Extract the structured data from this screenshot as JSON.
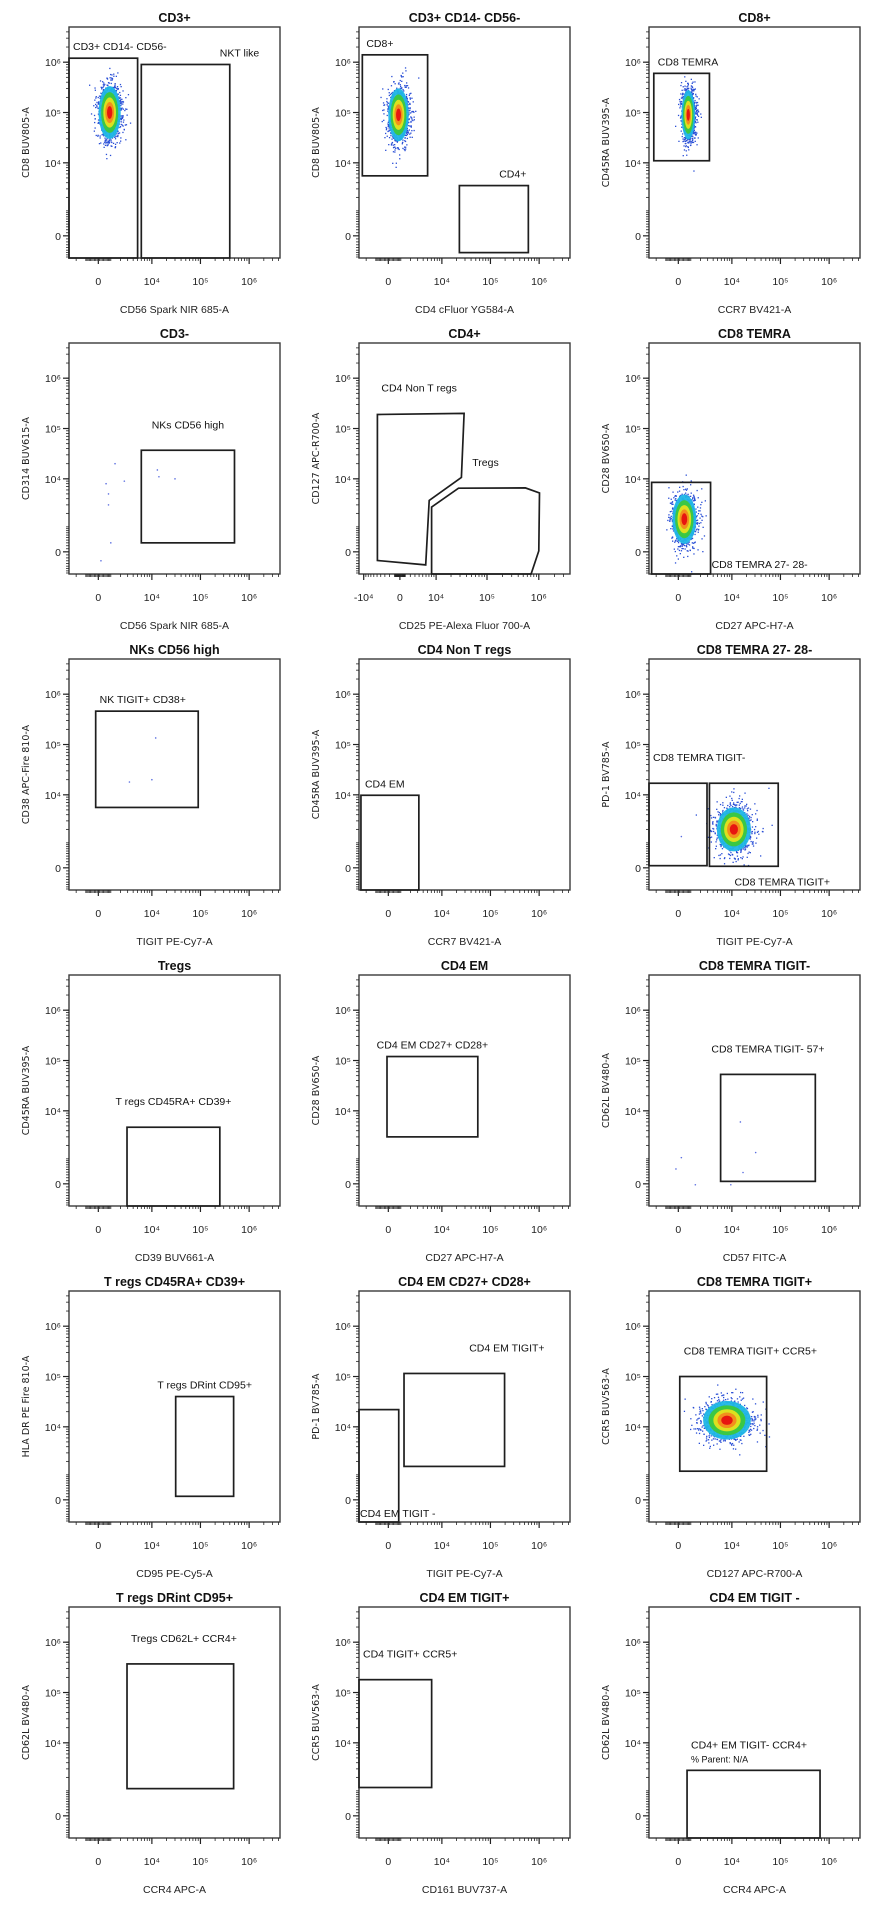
{
  "colors": {
    "gate": "#1e1e1e",
    "frame": "#3a3a3a",
    "event": "#5a6ee0",
    "density": [
      "#2a4fd6",
      "#1fb6e6",
      "#3cc83c",
      "#e6e21e",
      "#f28a1e",
      "#e61010"
    ]
  },
  "axis_defaults": {
    "x": {
      "scale": "biexponential",
      "cofactor": 1600,
      "range": [
        -3000,
        4300000
      ],
      "ticks": [
        0,
        10000,
        100000,
        1000000
      ],
      "tick_labels": [
        "0",
        "10⁴",
        "10⁵",
        "10⁶"
      ]
    },
    "y": {
      "scale": "biexponential",
      "cofactor": 710,
      "range": [
        -850,
        5000000
      ],
      "ticks": [
        0,
        10000,
        100000,
        1000000
      ],
      "tick_labels": [
        "0",
        "10⁴",
        "10⁵",
        "10⁶"
      ]
    }
  },
  "chart_data": [
    {
      "type": "scatter",
      "title": "CD3+",
      "xlabel": "CD56 Spark NIR 685-A",
      "ylabel": "CD8 BUV805-A",
      "gates": [
        {
          "label": "CD3+ CD14- CD56-",
          "shape": "rect",
          "x": [
            -3000,
            5000
          ],
          "y": [
            -850,
            1200000
          ],
          "placement": "above-left"
        },
        {
          "label": "NKT like",
          "shape": "rect",
          "x": [
            6000,
            400000
          ],
          "y": [
            -850,
            900000
          ],
          "placement": "above-right"
        }
      ],
      "populations": [
        {
          "center": [
            900,
            100000
          ],
          "spread_decades": [
            0.13,
            0.3
          ]
        }
      ]
    },
    {
      "type": "scatter",
      "title": "CD3+ CD14- CD56-",
      "xlabel": "CD4 cFluor YG584-A",
      "ylabel": "CD8 BUV805-A",
      "gates": [
        {
          "label": "CD8+",
          "shape": "rect",
          "x": [
            -2500,
            5000
          ],
          "y": [
            5500,
            1400000
          ],
          "placement": "above-left"
        },
        {
          "label": "CD4+",
          "shape": "rect",
          "x": [
            23000,
            600000
          ],
          "y": [
            -600,
            3500
          ],
          "placement": "above-end"
        }
      ],
      "populations": [
        {
          "center": [
            800,
            90000
          ],
          "spread_decades": [
            0.12,
            0.3
          ]
        }
      ]
    },
    {
      "type": "scatter",
      "title": "CD8+",
      "xlabel": "CCR7 BV421-A",
      "ylabel": "CD45RA BUV395-A",
      "gates": [
        {
          "label": "CD8 TEMRA",
          "shape": "rect",
          "x": [
            -2300,
            3300
          ],
          "y": [
            11000,
            600000
          ],
          "placement": "above-left"
        }
      ],
      "populations": [
        {
          "center": [
            780,
            90000
          ],
          "spread_decades": [
            0.08,
            0.28
          ]
        }
      ]
    },
    {
      "type": "scatter",
      "title": "CD3-",
      "xlabel": "CD56 Spark NIR 685-A",
      "ylabel": "CD314 BUV615-A",
      "gates": [
        {
          "label": "NKs CD56 high",
          "shape": "rect",
          "x": [
            6000,
            500000
          ],
          "y": [
            300,
            37000
          ],
          "placement": "above-center-far"
        }
      ],
      "events": [
        [
          1400,
          20000
        ],
        [
          600,
          8000
        ],
        [
          800,
          5000
        ],
        [
          800,
          3000
        ],
        [
          2500,
          9000
        ],
        [
          13000,
          15000
        ],
        [
          14000,
          11000
        ],
        [
          30000,
          10000
        ],
        [
          1000,
          300
        ],
        [
          200,
          -300
        ]
      ]
    },
    {
      "type": "scatter",
      "title": "CD4+",
      "xlabel": "CD25 PE-Alexa Fluor 700-A",
      "ylabel": "CD127 APC-R700-A",
      "x_axis": {
        "scale": "biexponential",
        "cofactor": 4170,
        "range": [
          -12500,
          4000000
        ],
        "ticks": [
          -10000,
          0,
          10000,
          100000,
          1000000
        ],
        "tick_labels": [
          "-10⁴",
          "0",
          "10⁴",
          "10⁵",
          "10⁶"
        ]
      },
      "gates": [
        {
          "label": "CD4 Non T regs",
          "shape": "polygon",
          "points": [
            [
              -4900,
              190000
            ],
            [
              36000,
              200000
            ],
            [
              32000,
              10700
            ],
            [
              7100,
              3700
            ],
            [
              5900,
              -450
            ],
            [
              -4900,
              -290
            ]
          ],
          "placement": "above-left-far"
        },
        {
          "label": "Tregs",
          "shape": "polygon",
          "points": [
            [
              8000,
              -850
            ],
            [
              8000,
              2700
            ],
            [
              28000,
              6500
            ],
            [
              550000,
              6600
            ],
            [
              1030000,
              5200
            ],
            [
              1000000,
              30
            ],
            [
              710000,
              -850
            ]
          ],
          "placement": "above-center-far"
        }
      ]
    },
    {
      "type": "scatter",
      "title": "CD8 TEMRA",
      "xlabel": "CD27 APC-H7-A",
      "ylabel": "CD28 BV650-A",
      "gates": [
        {
          "label": "CD8 TEMRA 27- 28-",
          "shape": "rect",
          "x": [
            -2600,
            3500
          ],
          "y": [
            -850,
            8500
          ],
          "placement": "right-bottom"
        }
      ],
      "populations": [
        {
          "center": [
            460,
            1500
          ],
          "spread_decades": [
            0.14,
            0.28
          ]
        }
      ]
    },
    {
      "type": "scatter",
      "title": "NKs CD56 high",
      "xlabel": "TIGIT PE-Cy7-A",
      "ylabel": "CD38 APC-Fire 810-A",
      "gates": [
        {
          "label": "NK TIGIT+ CD38+",
          "shape": "rect",
          "x": [
            -200,
            90000
          ],
          "y": [
            5600,
            460000
          ],
          "placement": "above-left"
        }
      ],
      "events": [
        [
          12000,
          135000
        ],
        [
          3300,
          18000
        ],
        [
          10000,
          20000
        ]
      ]
    },
    {
      "type": "scatter",
      "title": "CD4 Non T regs",
      "xlabel": "CCR7 BV421-A",
      "ylabel": "CD45RA BUV395-A",
      "gates": [
        {
          "label": "CD4 EM",
          "shape": "rect",
          "x": [
            -2700,
            3200
          ],
          "y": [
            -850,
            9800
          ],
          "placement": "above-left"
        }
      ]
    },
    {
      "type": "scatter",
      "title": "CD8 TEMRA 27- 28-",
      "xlabel": "TIGIT PE-Cy7-A",
      "ylabel": "PD-1 BV785-A",
      "gates": [
        {
          "label": "CD8 TEMRA TIGIT-",
          "shape": "rect",
          "x": [
            -3000,
            2900
          ],
          "y": [
            70,
            17000
          ],
          "placement": "above-left-far"
        },
        {
          "label": "CD8 TEMRA TIGIT+",
          "shape": "rect",
          "x": [
            3300,
            90000
          ],
          "y": [
            50,
            17000
          ],
          "placement": "below-right"
        }
      ],
      "populations": [
        {
          "center": [
            11000,
            2000
          ],
          "spread_decades": [
            0.2,
            0.25
          ]
        }
      ],
      "events": [
        [
          230,
          1400
        ]
      ]
    },
    {
      "type": "scatter",
      "title": "Tregs",
      "xlabel": "CD39 BUV661-A",
      "ylabel": "CD45RA BUV395-A",
      "gates": [
        {
          "label": "T regs CD45RA+ CD39+",
          "shape": "rect",
          "x": [
            2900,
            250000
          ],
          "y": [
            -850,
            4700
          ],
          "placement": "above-center-far"
        }
      ]
    },
    {
      "type": "scatter",
      "title": "CD4 EM",
      "xlabel": "CD27 APC-H7-A",
      "ylabel": "CD28 BV650-A",
      "gates": [
        {
          "label": "CD4 EM CD27+ CD28+",
          "shape": "rect",
          "x": [
            -100,
            55000
          ],
          "y": [
            3000,
            120000
          ],
          "placement": "above-center"
        }
      ]
    },
    {
      "type": "scatter",
      "title": "CD8 TEMRA TIGIT-",
      "xlabel": "CD57 FITC-A",
      "ylabel": "CD62L BV480-A",
      "gates": [
        {
          "label": "CD8 TEMRA  TIGIT- 57+",
          "shape": "rect",
          "x": [
            5800,
            520000
          ],
          "y": [
            80,
            53000
          ],
          "placement": "above-center-far"
        }
      ],
      "events": [
        [
          15000,
          6000
        ],
        [
          31000,
          1400
        ],
        [
          17000,
          385
        ],
        [
          230,
          1070
        ],
        [
          -180,
          520
        ],
        [
          1430,
          -30
        ],
        [
          9500,
          -30
        ]
      ]
    },
    {
      "type": "scatter",
      "title": "T regs CD45RA+ CD39+",
      "xlabel": "CD95 PE-Cy5-A",
      "ylabel": "HLA DR PE Fire 810-A",
      "gates": [
        {
          "label": "T regs DRint CD95+",
          "shape": "rect",
          "x": [
            31000,
            480000
          ],
          "y": [
            115,
            40000
          ],
          "placement": "above-center"
        }
      ]
    },
    {
      "type": "scatter",
      "title": "CD4 EM CD27+ CD28+",
      "xlabel": "TIGIT PE-Cy7-A",
      "ylabel": "PD-1 BV785-A",
      "gates": [
        {
          "label": "CD4 EM TIGIT+",
          "shape": "rect",
          "x": [
            1300,
            195000
          ],
          "y": [
            1560,
            115000
          ],
          "placement": "above-end-out-far"
        },
        {
          "label": "CD4 EM TIGIT -",
          "shape": "rect",
          "x": [
            -3000,
            820
          ],
          "y": [
            -850,
            22000
          ],
          "placement": "inside-bottom-left"
        }
      ]
    },
    {
      "type": "scatter",
      "title": "CD8 TEMRA TIGIT+",
      "xlabel": "CD127 APC-R700-A",
      "ylabel": "CCR5 BUV563-A",
      "gates": [
        {
          "label": "CD8 TEMRA TIGIT+ CCR5+",
          "shape": "rect",
          "x": [
            110,
            52000
          ],
          "y": [
            1220,
            100000
          ],
          "placement": "above-left-far"
        }
      ],
      "populations": [
        {
          "center": [
            7900,
            13500
          ],
          "spread_decades": [
            0.28,
            0.22
          ]
        }
      ]
    },
    {
      "type": "scatter",
      "title": "T regs DRint CD95+",
      "xlabel": "CCR4 APC-A",
      "ylabel": "CD62L BV480-A",
      "gates": [
        {
          "label": "Tregs CD62L+ CCR4+",
          "shape": "rect",
          "x": [
            2900,
            480000
          ],
          "y": [
            1130,
            370000
          ],
          "placement": "above-left-far"
        }
      ]
    },
    {
      "type": "scatter",
      "title": "CD4 EM TIGIT+",
      "xlabel": "CD161 BUV737-A",
      "ylabel": "CCR5 BUV563-A",
      "gates": [
        {
          "label": "CD4 TIGIT+ CCR5+",
          "shape": "rect",
          "x": [
            -3000,
            6100
          ],
          "y": [
            1200,
            180000
          ],
          "placement": "above-left-far"
        }
      ]
    },
    {
      "type": "scatter",
      "title": "CD4 EM TIGIT -",
      "xlabel": "CCR4 APC-A",
      "ylabel": "CD62L BV480-A",
      "gates": [
        {
          "label": "CD4+ EM TIGIT- CCR4+",
          "label_sub": "% Parent: N/A",
          "shape": "rect",
          "x": [
            680,
            650000
          ],
          "y": [
            -850,
            2800
          ],
          "placement": "above-left"
        }
      ]
    }
  ]
}
